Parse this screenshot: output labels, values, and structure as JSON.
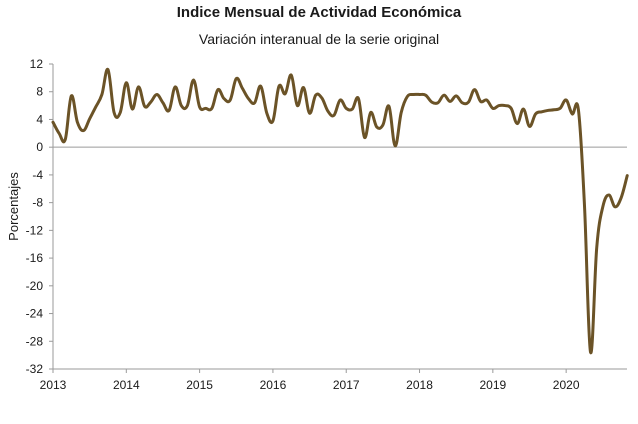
{
  "chart_data": {
    "type": "line",
    "title": "Indice Mensual de  Actividad Económica",
    "subtitle": "Variación interanual de la serie original",
    "xlabel": "",
    "ylabel": "Porcentajes",
    "ylim": [
      -32,
      12
    ],
    "yticks": [
      "12",
      "8",
      "4",
      "0",
      "-4",
      "-8",
      "-12",
      "-16",
      "-20",
      "-24",
      "-28",
      "-32"
    ],
    "xticks": [
      "2013",
      "2014",
      "2015",
      "2016",
      "2017",
      "2018",
      "2019",
      "2020"
    ],
    "xlim": [
      2013.0,
      2020.83
    ],
    "line_color": "#6b5327",
    "zero_line": true,
    "grid": false,
    "series": [
      {
        "name": "",
        "x": [
          2013.0,
          2013.083,
          2013.167,
          2013.25,
          2013.333,
          2013.417,
          2013.5,
          2013.583,
          2013.667,
          2013.75,
          2013.833,
          2013.917,
          2014.0,
          2014.083,
          2014.167,
          2014.25,
          2014.333,
          2014.417,
          2014.5,
          2014.583,
          2014.667,
          2014.75,
          2014.833,
          2014.917,
          2015.0,
          2015.083,
          2015.167,
          2015.25,
          2015.333,
          2015.417,
          2015.5,
          2015.583,
          2015.667,
          2015.75,
          2015.833,
          2015.917,
          2016.0,
          2016.083,
          2016.167,
          2016.25,
          2016.333,
          2016.417,
          2016.5,
          2016.583,
          2016.667,
          2016.75,
          2016.833,
          2016.917,
          2017.0,
          2017.083,
          2017.167,
          2017.25,
          2017.333,
          2017.417,
          2017.5,
          2017.583,
          2017.667,
          2017.75,
          2017.833,
          2017.917,
          2018.0,
          2018.083,
          2018.167,
          2018.25,
          2018.333,
          2018.417,
          2018.5,
          2018.583,
          2018.667,
          2018.75,
          2018.833,
          2018.917,
          2019.0,
          2019.083,
          2019.167,
          2019.25,
          2019.333,
          2019.417,
          2019.5,
          2019.583,
          2019.667,
          2019.75,
          2019.833,
          2019.917,
          2020.0,
          2020.083,
          2020.167,
          2020.25,
          2020.333,
          2020.417,
          2020.5,
          2020.583,
          2020.667,
          2020.75,
          2020.833
        ],
        "values": [
          3.6,
          2.0,
          1.1,
          7.4,
          3.6,
          2.4,
          4.1,
          5.8,
          7.6,
          11.2,
          5.0,
          5.0,
          9.3,
          5.5,
          8.7,
          5.9,
          6.5,
          7.6,
          6.4,
          5.3,
          8.7,
          6.0,
          6.0,
          9.7,
          5.8,
          5.6,
          5.6,
          8.3,
          7.0,
          6.8,
          9.9,
          8.5,
          7.0,
          6.4,
          8.8,
          4.9,
          3.8,
          8.8,
          7.7,
          10.4,
          6.0,
          8.6,
          4.9,
          7.5,
          7.1,
          5.2,
          4.6,
          6.8,
          5.6,
          5.5,
          7.0,
          1.4,
          5.0,
          2.9,
          3.2,
          5.9,
          0.2,
          5.0,
          7.3,
          7.6,
          7.6,
          7.5,
          6.5,
          6.4,
          7.5,
          6.6,
          7.4,
          6.4,
          6.5,
          8.3,
          6.6,
          6.8,
          5.6,
          6.0,
          6.0,
          5.6,
          3.4,
          5.5,
          3.0,
          4.8,
          5.1,
          5.3,
          5.4,
          5.6,
          6.8,
          4.8,
          5.4,
          -8.4,
          -29.6,
          -14.5,
          -8.6,
          -6.9,
          -8.6,
          -7.3,
          -4.1
        ]
      }
    ]
  }
}
